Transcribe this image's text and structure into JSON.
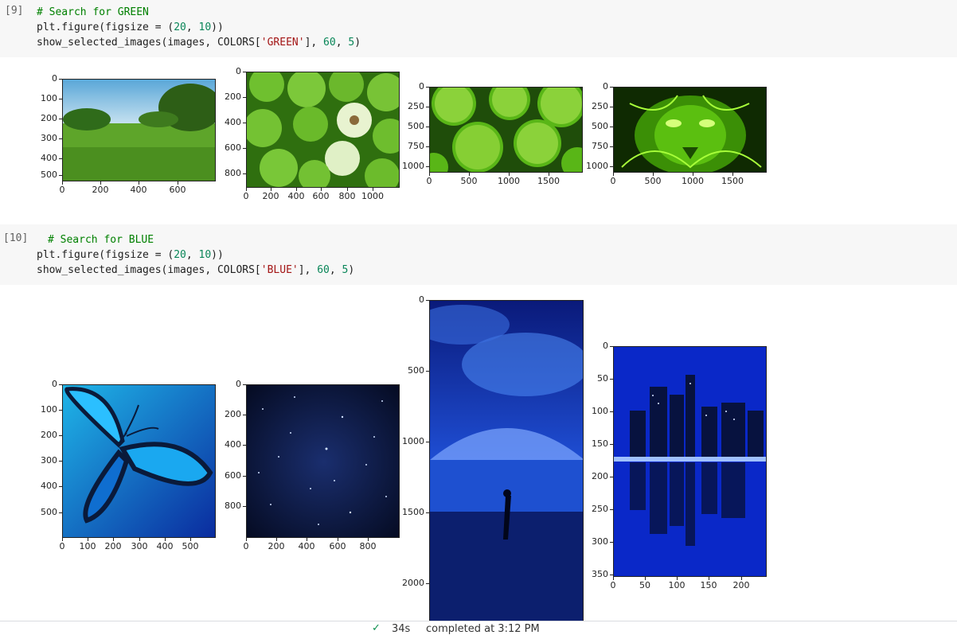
{
  "cells": [
    {
      "exec_count": "[9]",
      "comment": "# Search for GREEN",
      "line2_a": "plt.figure(figsize = (",
      "line2_n1": "20",
      "line2_b": ", ",
      "line2_n2": "10",
      "line2_c": "))",
      "line3_a": "show_selected_images(images, COLORS[",
      "line3_str": "'GREEN'",
      "line3_b": "], ",
      "line3_n1": "60",
      "line3_c": ", ",
      "line3_n2": "5",
      "line3_d": ")"
    },
    {
      "exec_count": "[10]",
      "comment": "# Search for BLUE",
      "line2_a": "plt.figure(figsize = (",
      "line2_n1": "20",
      "line2_b": ", ",
      "line2_n2": "10",
      "line2_c": "))",
      "line3_a": "show_selected_images(images, COLORS[",
      "line3_str": "'BLUE'",
      "line3_b": "], ",
      "line3_n1": "60",
      "line3_c": ", ",
      "line3_n2": "5",
      "line3_d": ")"
    }
  ],
  "green_plots": [
    {
      "subject": "green park landscape",
      "yticks": [
        "0",
        "100",
        "200",
        "300",
        "400",
        "500"
      ],
      "xticks": [
        "0",
        "200",
        "400",
        "600"
      ]
    },
    {
      "subject": "green apples",
      "yticks": [
        "0",
        "200",
        "400",
        "600",
        "800"
      ],
      "xticks": [
        "0",
        "200",
        "400",
        "600",
        "800",
        "1000"
      ]
    },
    {
      "subject": "lime slices",
      "yticks": [
        "0",
        "250",
        "500",
        "750",
        "1000"
      ],
      "xticks": [
        "0",
        "500",
        "1000",
        "1500"
      ]
    },
    {
      "subject": "neon green leopard",
      "yticks": [
        "0",
        "250",
        "500",
        "750",
        "1000"
      ],
      "xticks": [
        "0",
        "500",
        "1000",
        "1500"
      ]
    }
  ],
  "blue_plots": [
    {
      "subject": "blue butterfly",
      "yticks": [
        "0",
        "100",
        "200",
        "300",
        "400",
        "500"
      ],
      "xticks": [
        "0",
        "100",
        "200",
        "300",
        "400",
        "500"
      ]
    },
    {
      "subject": "starry sky",
      "yticks": [
        "0",
        "200",
        "400",
        "600",
        "800"
      ],
      "xticks": [
        "0",
        "200",
        "400",
        "600",
        "800"
      ]
    },
    {
      "subject": "person on beach under night sky",
      "yticks": [
        "0",
        "500",
        "1000",
        "1500",
        "2000"
      ],
      "xticks": []
    },
    {
      "subject": "blue city skyline reflection",
      "yticks": [
        "0",
        "50",
        "100",
        "150",
        "200",
        "250",
        "300",
        "350"
      ],
      "xticks": [
        "0",
        "50",
        "100",
        "150",
        "200"
      ]
    }
  ],
  "status": {
    "check_icon": "check-icon",
    "duration": "34s",
    "text": "completed at 3:12 PM"
  },
  "colors": {
    "cell_bg": "#f7f7f7",
    "comment": "#008000",
    "number": "#098658",
    "string": "#a31515"
  }
}
